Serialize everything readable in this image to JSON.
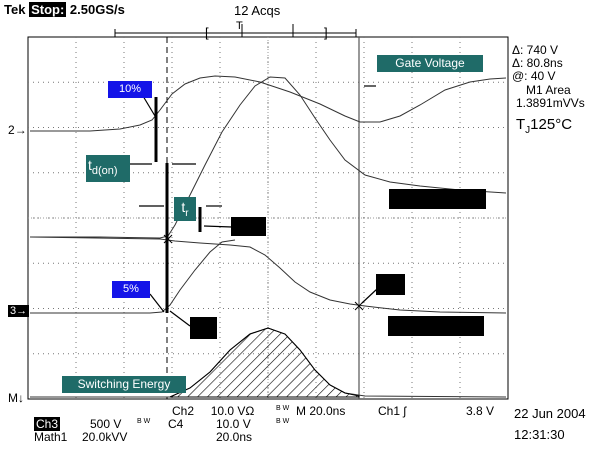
{
  "header": {
    "brand": "Tek",
    "stop_label": "Stop:",
    "sample_rate": "2.50GS/s",
    "acqs": "12 Acqs",
    "trigger_marker": "T"
  },
  "measurements": {
    "delta_v": "Δ: 740 V",
    "delta_t": "Δ: 80.8ns",
    "at_v": "@: 40 V",
    "area_label": "M1 Area",
    "area_value": "1.3891mVVs",
    "tj_prefix": "T",
    "tj_sub": "J",
    "tj_value": "125°C"
  },
  "labels": {
    "gate_voltage": "Gate Voltage",
    "pct10": "10%",
    "pct5": "5%",
    "td_main": "t",
    "td_sub": "d(on)",
    "tr_main": "t",
    "tr_sub": "r",
    "switching_energy": "Switching Energy"
  },
  "channel_markers": {
    "ch2": "2",
    "ch3": "3",
    "math": "M"
  },
  "bottom": {
    "ch3_label": "Ch3",
    "ch3_scale": "500 V",
    "bw1": "B W",
    "ch2_label": "Ch2",
    "ch2_scale": "10.0 VΩ",
    "bw2": "B W",
    "timebase": "M 20.0ns",
    "trigger_src": "Ch1",
    "trigger_slope": "ʃ",
    "trigger_level": "3.8 V",
    "c4_label": "C4",
    "c4_scale": "10.0 V",
    "bw3": "B W",
    "math_label": "Math1",
    "math_scale": "20.0kVV",
    "math_time": "20.0ns",
    "date": "22 Jun 2004",
    "time": "12:31:30"
  }
}
